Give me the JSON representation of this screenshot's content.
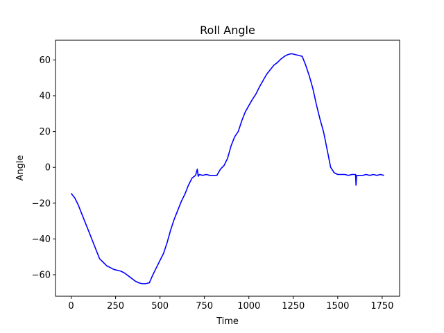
{
  "chart_data": {
    "type": "line",
    "title": "Roll Angle",
    "xlabel": "Time",
    "ylabel": "Angle",
    "xlim": [
      -88,
      1848
    ],
    "ylim": [
      -72,
      71
    ],
    "x_ticks": [
      0,
      250,
      500,
      750,
      1000,
      1250,
      1500,
      1750
    ],
    "y_ticks": [
      -60,
      -40,
      -20,
      0,
      20,
      40,
      60
    ],
    "grid": false,
    "series": [
      {
        "color": "#0000ff",
        "x": [
          0,
          20,
          40,
          60,
          80,
          100,
          120,
          140,
          160,
          180,
          200,
          220,
          240,
          260,
          280,
          300,
          320,
          340,
          360,
          380,
          400,
          420,
          440,
          460,
          480,
          500,
          520,
          540,
          560,
          580,
          600,
          620,
          640,
          660,
          680,
          700,
          710,
          715,
          718,
          722,
          740,
          760,
          780,
          800,
          820,
          840,
          860,
          880,
          900,
          920,
          940,
          960,
          980,
          1000,
          1020,
          1040,
          1060,
          1080,
          1100,
          1120,
          1140,
          1160,
          1180,
          1200,
          1220,
          1240,
          1260,
          1280,
          1300,
          1320,
          1340,
          1360,
          1380,
          1400,
          1420,
          1440,
          1460,
          1480,
          1500,
          1520,
          1540,
          1560,
          1580,
          1600,
          1603,
          1606,
          1620,
          1640,
          1660,
          1680,
          1700,
          1720,
          1740,
          1760
        ],
        "y": [
          -14.5,
          -17,
          -21,
          -26,
          -31,
          -36,
          -41,
          -46,
          -51,
          -53,
          -55,
          -56,
          -57,
          -57.5,
          -58,
          -59,
          -60.5,
          -62,
          -63.5,
          -64.5,
          -65,
          -65,
          -64.5,
          -60,
          -56,
          -52,
          -48,
          -42,
          -35,
          -29,
          -24,
          -19,
          -15,
          -10,
          -6,
          -4.5,
          -1,
          -5,
          -4.5,
          -4,
          -4.5,
          -4,
          -4.5,
          -4.5,
          -4.5,
          -1,
          1,
          5,
          12,
          17,
          20,
          26,
          31,
          34.5,
          38,
          41,
          45,
          48.5,
          52,
          54.5,
          57,
          58.5,
          60.5,
          62,
          63,
          63.5,
          63,
          62.5,
          62,
          57,
          51,
          44,
          35,
          27,
          20,
          10,
          0,
          -3,
          -4,
          -4,
          -4,
          -4.5,
          -4,
          -4,
          -10,
          -4.5,
          -4.5,
          -4.5,
          -4,
          -4.5,
          -4,
          -4.5,
          -4,
          -4.5
        ]
      }
    ]
  }
}
